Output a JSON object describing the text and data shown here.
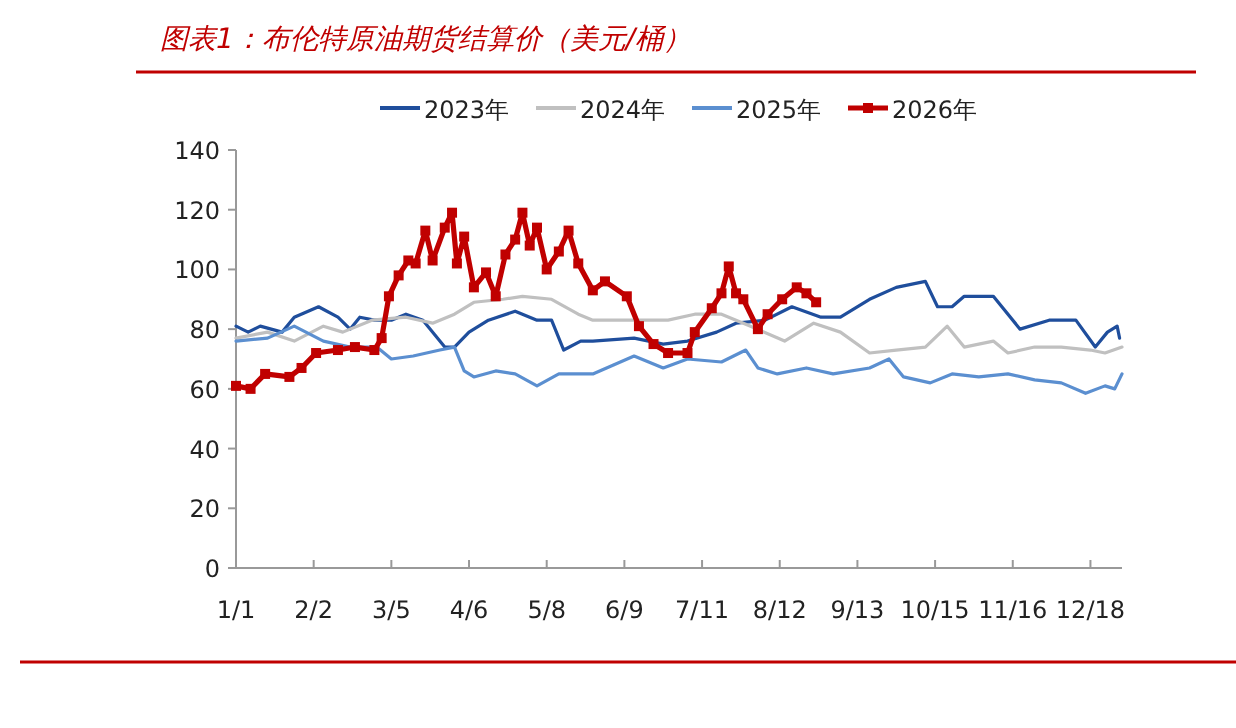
{
  "chart_data": {
    "type": "line",
    "title": "图表1：布伦特原油期货结算价（美元/桶）",
    "xlim": [
      "--01-01",
      "--12-31"
    ],
    "xticks": [
      {
        "value": "--01-01",
        "label": "1/1"
      },
      {
        "value": "--02-02",
        "label": "2/2"
      },
      {
        "value": "--03-05",
        "label": "3/5"
      },
      {
        "value": "--04-06",
        "label": "4/6"
      },
      {
        "value": "--05-08",
        "label": "5/8"
      },
      {
        "value": "--06-09",
        "label": "6/9"
      },
      {
        "value": "--07-11",
        "label": "7/11"
      },
      {
        "value": "--08-12",
        "label": "8/12"
      },
      {
        "value": "--09-13",
        "label": "9/13"
      },
      {
        "value": "--10-15",
        "label": "10/15"
      },
      {
        "value": "--11-16",
        "label": "11/16"
      },
      {
        "value": "--12-18",
        "label": "12/18"
      }
    ],
    "ylim": [
      0,
      140
    ],
    "yticks": [
      0,
      20,
      40,
      60,
      80,
      100,
      120,
      140
    ],
    "grid": false,
    "legend": "top",
    "series": [
      {
        "name": "2023年",
        "color": "#1f4e9c",
        "x": [
          "--01-01",
          "--01-06",
          "--01-11",
          "--01-20",
          "--01-25",
          "--02-04",
          "--02-12",
          "--02-17",
          "--02-21",
          "--02-27",
          "--03-05",
          "--03-11",
          "--03-18",
          "--03-27",
          "--03-31",
          "--04-06",
          "--04-14",
          "--04-25",
          "--05-04",
          "--05-10",
          "--05-15",
          "--05-22",
          "--05-27",
          "--06-13",
          "--06-25",
          "--07-05",
          "--07-17",
          "--07-25",
          "--08-06",
          "--08-17",
          "--08-29",
          "--09-06",
          "--09-18",
          "--09-29",
          "--10-11",
          "--10-16",
          "--10-22",
          "--10-27",
          "--11-08",
          "--11-19",
          "--12-01",
          "--12-12",
          "--12-20",
          "--12-25",
          "--12-29",
          "--12-30"
        ],
        "values": [
          81,
          79,
          81,
          79,
          84,
          87.5,
          84,
          80,
          84,
          83,
          83,
          85,
          83,
          74,
          74,
          79,
          83,
          86,
          83,
          83,
          73,
          76,
          76,
          77,
          75,
          76,
          79,
          82,
          83,
          87.5,
          84,
          84,
          90,
          94,
          96,
          87.5,
          87.5,
          91,
          91,
          80,
          83,
          83,
          74,
          79,
          81,
          77
        ]
      },
      {
        "name": "2024年",
        "color": "#c0c0c0",
        "x": [
          "--01-01",
          "--01-14",
          "--01-25",
          "--02-06",
          "--02-14",
          "--02-26",
          "--03-11",
          "--03-22",
          "--03-31",
          "--04-08",
          "--04-20",
          "--04-28",
          "--05-10",
          "--05-21",
          "--05-27",
          "--06-13",
          "--06-27",
          "--07-08",
          "--07-19",
          "--07-31",
          "--08-14",
          "--08-26",
          "--09-06",
          "--09-18",
          "--09-29",
          "--10-11",
          "--10-20",
          "--10-27",
          "--11-08",
          "--11-14",
          "--11-25",
          "--12-06",
          "--12-18",
          "--12-24",
          "--12-31"
        ],
        "values": [
          77,
          79,
          76,
          81,
          79,
          83,
          84,
          82,
          85,
          89,
          90,
          91,
          90,
          85,
          83,
          83,
          83,
          85,
          85,
          81,
          76,
          82,
          79,
          72,
          73,
          74,
          81,
          74,
          76,
          72,
          74,
          74,
          73,
          72,
          74
        ]
      },
      {
        "name": "2025年",
        "color": "#5b8fd0",
        "x": [
          "--01-01",
          "--01-14",
          "--01-25",
          "--02-06",
          "--02-17",
          "--02-28",
          "--03-05",
          "--03-14",
          "--03-25",
          "--03-31",
          "--04-04",
          "--04-08",
          "--04-17",
          "--04-25",
          "--05-04",
          "--05-13",
          "--05-24",
          "--05-27",
          "--06-13",
          "--06-25",
          "--07-05",
          "--07-19",
          "--07-29",
          "--08-03",
          "--08-11",
          "--08-23",
          "--09-03",
          "--09-18",
          "--09-26",
          "--10-02",
          "--10-13",
          "--10-22",
          "--11-02",
          "--11-14",
          "--11-25",
          "--12-06",
          "--12-16",
          "--12-24",
          "--12-28",
          "--12-31"
        ],
        "values": [
          76,
          77,
          81,
          76,
          74,
          74,
          70,
          71,
          73,
          74,
          66,
          64,
          66,
          65,
          61,
          65,
          65,
          65,
          71,
          67,
          70,
          69,
          73,
          67,
          65,
          67,
          65,
          67,
          70,
          64,
          62,
          65,
          64,
          65,
          63,
          62,
          58.5,
          61,
          60,
          65
        ]
      },
      {
        "name": "2026年",
        "color": "#c00000",
        "marker": "square",
        "x": [
          "--01-01",
          "--01-07",
          "--01-13",
          "--01-23",
          "--01-28",
          "--02-03",
          "--02-12",
          "--02-19",
          "--02-27",
          "--03-01",
          "--03-04",
          "--03-08",
          "--03-12",
          "--03-15",
          "--03-19",
          "--03-22",
          "--03-27",
          "--03-30",
          "--04-01",
          "--04-04",
          "--04-08",
          "--04-13",
          "--04-17",
          "--04-21",
          "--04-25",
          "--04-28",
          "--05-01",
          "--05-04",
          "--05-08",
          "--05-13",
          "--05-17",
          "--05-21",
          "--05-27",
          "--06-01",
          "--06-10",
          "--06-15",
          "--06-21",
          "--06-27",
          "--07-05",
          "--07-08",
          "--07-15",
          "--07-19",
          "--07-22",
          "--07-25",
          "--07-28",
          "--08-03",
          "--08-07",
          "--08-13",
          "--08-19",
          "--08-23",
          "--08-27"
        ],
        "values": [
          61,
          60,
          65,
          64,
          67,
          72,
          73,
          74,
          73,
          77,
          91,
          98,
          103,
          102,
          113,
          103,
          114,
          119,
          102,
          111,
          94,
          99,
          91,
          105,
          110,
          119,
          108,
          114,
          100,
          106,
          113,
          102,
          93,
          96,
          91,
          81,
          75,
          72,
          72,
          79,
          87,
          92,
          101,
          92,
          90,
          80,
          85,
          90,
          94,
          92,
          89
        ]
      }
    ]
  }
}
